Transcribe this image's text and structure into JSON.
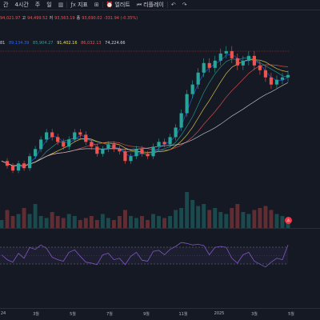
{
  "toolbar": {
    "interval_1": "간",
    "interval_2": "4시간",
    "interval_3": "주",
    "interval_4": "일",
    "indicators_label": "지표",
    "alert_label": "얼러트",
    "replay_label": "리플레이"
  },
  "ohlc": {
    "v1": "94,021.97",
    "h_prefix": "고",
    "v2": "94,499.52",
    "l_prefix": "저",
    "v3": "93,563.19",
    "c_prefix": "종",
    "v4": "93,690.02",
    "change": "-331.94 (-0.35%)"
  },
  "ma_values": [
    {
      "label": "81",
      "color": "#d1d4dc"
    },
    {
      "label": "89,134.39",
      "color": "#2962ff"
    },
    {
      "label": "85,904.27",
      "color": "#26a69a"
    },
    {
      "label": "91,402.16",
      "color": "#f2e24a"
    },
    {
      "label": "86,032.13",
      "color": "#ef5350"
    },
    {
      "label": "74,224.66",
      "color": "#d1d4dc"
    }
  ],
  "xaxis_labels": [
    "24",
    "3월",
    "5월",
    "7월",
    "9월",
    "11월",
    "2025",
    "3월",
    "5월"
  ],
  "event_badge": "⚠",
  "colors": {
    "background": "#151924",
    "up": "#26a69a",
    "down": "#ef5350",
    "rsi": "#7e57c2"
  },
  "chart_data": [
    {
      "type": "line",
      "series": [
        {
          "values": [
            58000,
            56000,
            54000,
            57000,
            55000,
            60000,
            63000,
            67000,
            70000,
            68000,
            66000,
            64000,
            67000,
            70000,
            69000,
            66000,
            64000,
            61000,
            63000,
            65000,
            63000,
            62000,
            58000,
            60000,
            63000,
            61000,
            60000,
            64000,
            66000,
            65000,
            68000,
            72000,
            78000,
            86000,
            90000,
            95000,
            99000,
            97000,
            100000,
            103000,
            104000,
            101000,
            98000,
            100000,
            102000,
            98000,
            96000,
            93000,
            90000,
            92000,
            93000,
            94000
          ]
        }
      ]
    },
    {
      "type": "bar",
      "series": [
        {
          "values": [
            0.2,
            0.45,
            0.3,
            0.35,
            0.5,
            0.35,
            0.6,
            0.3,
            0.25,
            0.4,
            0.3,
            0.25,
            0.35,
            0.3,
            0.2,
            0.25,
            0.3,
            0.2,
            0.35,
            0.25,
            0.2,
            0.3,
            0.45,
            0.3,
            0.25,
            0.3,
            0.2,
            0.35,
            0.3,
            0.25,
            0.3,
            0.45,
            0.5,
            0.9,
            0.7,
            0.55,
            0.6,
            0.45,
            0.5,
            0.4,
            0.35,
            0.5,
            0.6,
            0.4,
            0.35,
            0.45,
            0.5,
            0.55,
            0.45,
            0.35,
            0.3,
            0.25
          ]
        }
      ]
    },
    {
      "type": "line",
      "series": [
        {
          "values": [
            55,
            45,
            40,
            58,
            48,
            70,
            66,
            75,
            68,
            50,
            45,
            42,
            60,
            65,
            52,
            40,
            38,
            35,
            55,
            58,
            45,
            48,
            35,
            52,
            60,
            44,
            42,
            62,
            64,
            55,
            66,
            72,
            80,
            78,
            75,
            76,
            74,
            55,
            70,
            72,
            70,
            48,
            38,
            55,
            60,
            42,
            36,
            30,
            40,
            48,
            45,
            75
          ]
        }
      ]
    }
  ]
}
